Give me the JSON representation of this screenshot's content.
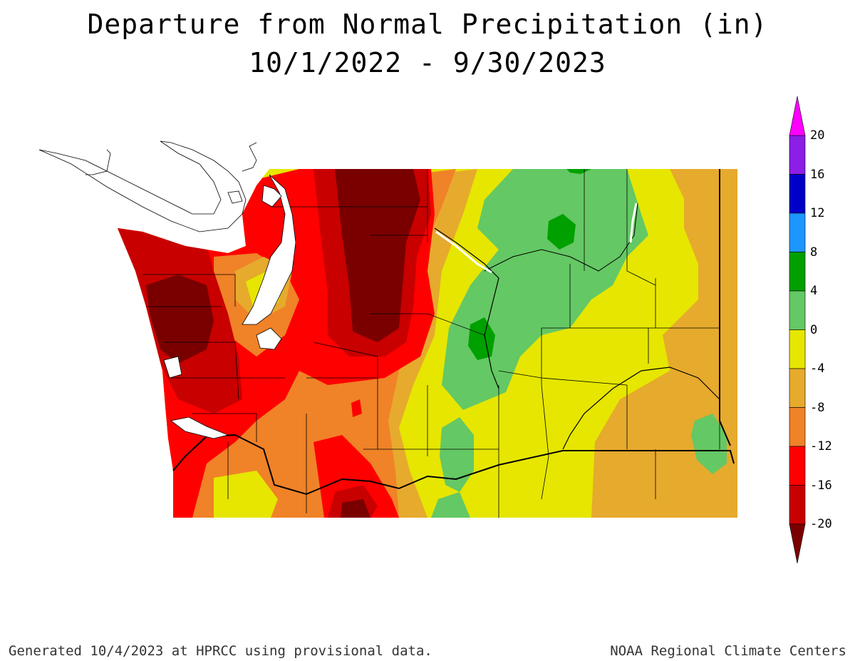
{
  "title": {
    "line1": "Departure from Normal Precipitation (in)",
    "line2": "10/1/2022 - 9/30/2023"
  },
  "legend": {
    "colors": [
      "#7a0000",
      "#c80000",
      "#ff0000",
      "#f08228",
      "#e6aa2d",
      "#e6e600",
      "#64c864",
      "#00a000",
      "#1e96ff",
      "#0000c8",
      "#8c1ee6",
      "#ff00ff"
    ],
    "labels": [
      "-20",
      "-16",
      "-12",
      "-8",
      "-4",
      "0",
      "4",
      "8",
      "12",
      "16",
      "20"
    ]
  },
  "footer": {
    "left": "Generated 10/4/2023 at HPRCC using provisional data.",
    "right": "NOAA Regional Climate Centers"
  }
}
